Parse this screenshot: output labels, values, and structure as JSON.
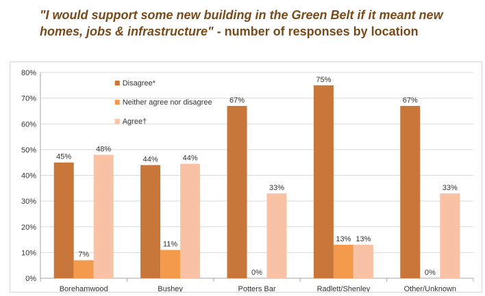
{
  "title": {
    "quote": "\"I would support some new building in the Green Belt if it meant new homes, jobs & infrastructure\"",
    "suffix": " - number of responses by location"
  },
  "colors": {
    "title": "#7a4a1a",
    "disagree": "#c8763a",
    "neither": "#f39a4c",
    "agree": "#f9c2a4",
    "grid": "#d9d9d9",
    "axis_text": "#333333"
  },
  "chart_data": {
    "type": "bar",
    "categories": [
      "Borehamwood",
      "Bushey",
      "Potters Bar",
      "Radlett/Shenley",
      "Other/Unknown"
    ],
    "series": [
      {
        "name": "Disagree*",
        "values": [
          45,
          44,
          67,
          75,
          67
        ],
        "labels": [
          "45%",
          "44%",
          "67%",
          "75%",
          "67%"
        ],
        "color": "#c8763a"
      },
      {
        "name": "Neither agree nor disagree",
        "values": [
          7,
          11,
          0,
          13,
          0
        ],
        "labels": [
          "7%",
          "11%",
          "0%",
          "13%",
          "0%"
        ],
        "color": "#f39a4c"
      },
      {
        "name": "Agree†",
        "values": [
          48,
          44.5,
          33,
          13,
          33
        ],
        "labels": [
          "48%",
          "44%",
          "33%",
          "13%",
          "33%"
        ],
        "color": "#f9c2a4"
      }
    ],
    "yticks": [
      "0%",
      "10%",
      "20%",
      "30%",
      "40%",
      "50%",
      "60%",
      "70%",
      "80%"
    ],
    "ylim": [
      0,
      80
    ],
    "grid": true,
    "legend_position": "inside-top-left"
  }
}
